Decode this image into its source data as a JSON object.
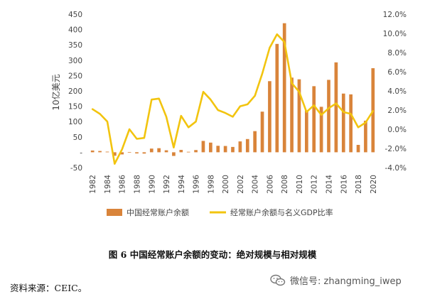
{
  "chart_data": {
    "type": "bar",
    "ylabel": "10亿美元",
    "y_ticks": [
      "450",
      "400",
      "350",
      "300",
      "250",
      "200",
      "150",
      "100",
      "50",
      "-",
      "-50"
    ],
    "y2_ticks": [
      "12.0%",
      "10.0%",
      "8.0%",
      "6.0%",
      "4.0%",
      "2.0%",
      "0.0%",
      "-2.0%",
      "-4.0%"
    ],
    "ylim": [
      -50,
      450
    ],
    "y2lim": [
      -4,
      12
    ],
    "x_tick_labels": [
      "1982",
      "1984",
      "1986",
      "1988",
      "1990",
      "1992",
      "1994",
      "1996",
      "1998",
      "2000",
      "2002",
      "2004",
      "2006",
      "2008",
      "2010",
      "2012",
      "2014",
      "2016",
      "2018",
      "2020"
    ],
    "x": [
      1982,
      1983,
      1984,
      1985,
      1986,
      1987,
      1988,
      1989,
      1990,
      1991,
      1992,
      1993,
      1994,
      1995,
      1996,
      1997,
      1998,
      1999,
      2000,
      2001,
      2002,
      2003,
      2004,
      2005,
      2006,
      2007,
      2008,
      2009,
      2010,
      2011,
      2012,
      2013,
      2014,
      2015,
      2016,
      2017,
      2018,
      2019,
      2020
    ],
    "series": [
      {
        "name": "中国经常账户余额",
        "kind": "bar",
        "axis": "left",
        "color": "#d9843a",
        "values": [
          5.7,
          4.2,
          2.0,
          -11.4,
          -7.0,
          0.3,
          -3.8,
          -4.3,
          12.0,
          13.3,
          6.4,
          -11.9,
          7.7,
          1.6,
          7.2,
          37.0,
          31.5,
          21.1,
          20.5,
          17.4,
          35.4,
          43.1,
          68.9,
          132.4,
          231.8,
          353.2,
          420.6,
          243.3,
          237.8,
          136.1,
          215.4,
          148.2,
          236.0,
          293.0,
          191.3,
          188.7,
          24.1,
          102.9,
          274.0
        ]
      },
      {
        "name": "经常账户余额与名义GDP比率",
        "kind": "line",
        "axis": "right",
        "color": "#f2c40f",
        "values": [
          2.1,
          1.6,
          0.8,
          -3.6,
          -2.1,
          0.0,
          -1.0,
          -0.9,
          3.1,
          3.2,
          1.3,
          -1.9,
          1.4,
          0.2,
          0.8,
          3.9,
          3.1,
          2.0,
          1.7,
          1.3,
          2.4,
          2.6,
          3.5,
          5.8,
          8.5,
          9.9,
          9.1,
          4.8,
          3.9,
          1.8,
          2.5,
          1.5,
          2.2,
          2.7,
          1.8,
          1.6,
          0.2,
          0.7,
          1.9
        ]
      }
    ]
  },
  "caption": "图 6    中国经常账户余额的变动：绝对规模与相对规模",
  "source": "资料来源：CEIC。",
  "watermark": "微信号: zhangming_iwep"
}
